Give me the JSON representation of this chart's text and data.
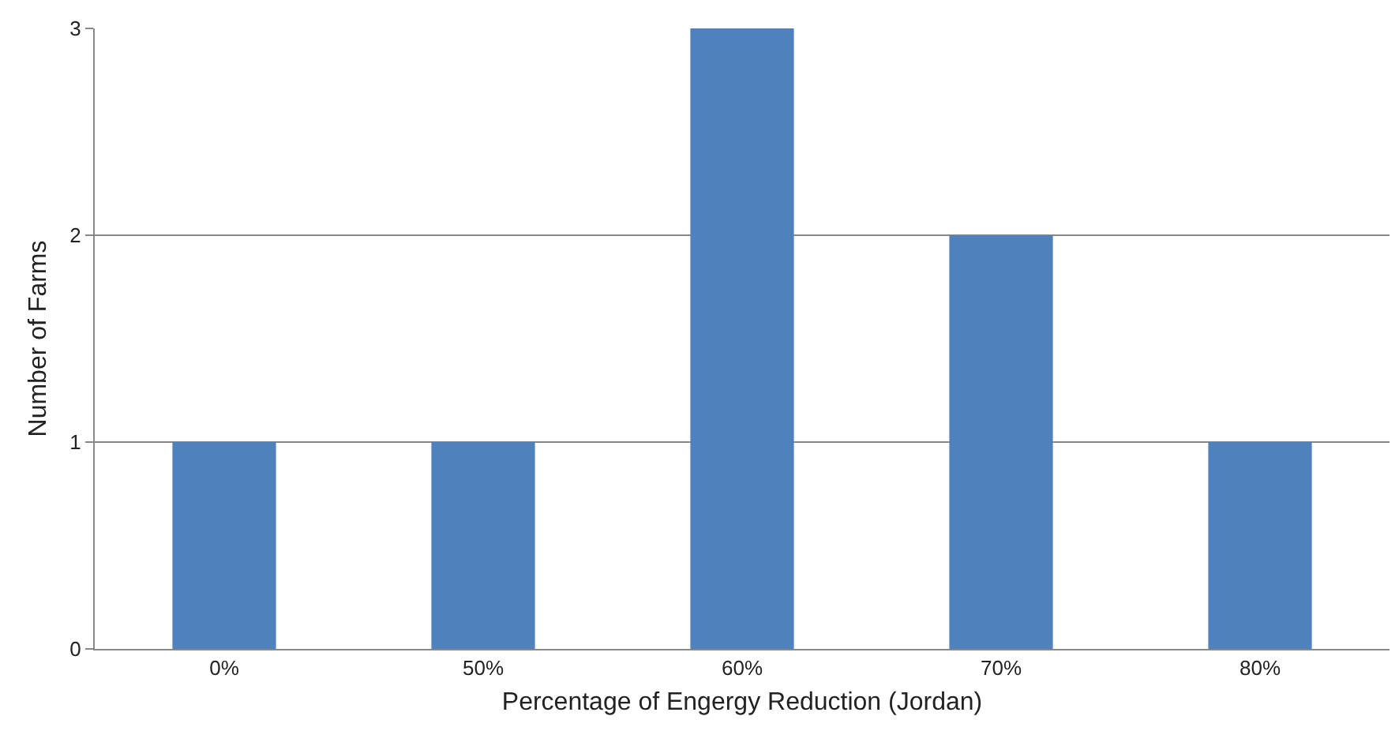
{
  "chart_data": {
    "type": "bar",
    "xlabel": "Percentage of Engergy Reduction (Jordan)",
    "ylabel": "Number of Farms",
    "categories": [
      "0%",
      "50%",
      "60%",
      "70%",
      "80%"
    ],
    "values": [
      1,
      1,
      3,
      2,
      1
    ],
    "color": "#4f81bd",
    "ylim": [
      0,
      3
    ],
    "yticks": [
      0,
      1,
      2,
      3
    ],
    "grid": "y"
  }
}
